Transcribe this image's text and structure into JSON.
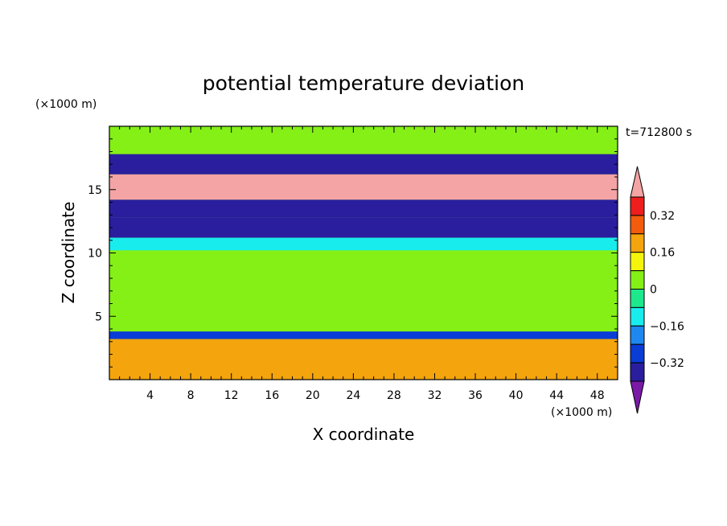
{
  "chart_data": {
    "type": "heatmap",
    "title": "potential temperature deviation",
    "xlabel": "X coordinate",
    "ylabel": "Z coordinate",
    "x_unit": "(×1000 m)",
    "y_unit": "(×1000 m)",
    "time_label": "t=712800 s",
    "xlim": [
      0,
      50
    ],
    "ylim": [
      0,
      20
    ],
    "x_ticks": [
      4,
      8,
      12,
      16,
      20,
      24,
      28,
      32,
      36,
      40,
      44,
      48
    ],
    "y_ticks": [
      5,
      10,
      15
    ],
    "colorbar": {
      "ticks": [
        0.32,
        0.16,
        0,
        -0.16,
        -0.32
      ],
      "tick_labels": [
        "0.32",
        "0.16",
        "0",
        "−0.16",
        "−0.32"
      ],
      "levels": [
        -0.4,
        -0.32,
        -0.24,
        -0.16,
        -0.08,
        0,
        0.08,
        0.16,
        0.24,
        0.32,
        0.4
      ],
      "colors": [
        "#7a1aa6",
        "#2a1e9e",
        "#0a3cd6",
        "#1e88f0",
        "#19ecec",
        "#1de88c",
        "#84f016",
        "#f4f40c",
        "#f4a40c",
        "#f25c0c",
        "#ee1e1e",
        "#f4a4a4"
      ],
      "extend": "both"
    },
    "field_bands": [
      {
        "z": [
          17.8,
          19.9
        ],
        "value": 0.05
      },
      {
        "z": [
          16.2,
          17.8
        ],
        "value": -0.34
      },
      {
        "z": [
          14.2,
          16.2
        ],
        "value": 0.42
      },
      {
        "z": [
          12.8,
          14.2
        ],
        "value": -0.34
      },
      {
        "z": [
          11.2,
          12.8
        ],
        "value": -0.36
      },
      {
        "z": [
          10.2,
          11.2
        ],
        "value": -0.1
      },
      {
        "z": [
          6.5,
          10.2
        ],
        "value": 0.04
      },
      {
        "z": [
          3.8,
          6.5
        ],
        "value": 0.07
      },
      {
        "z": [
          3.2,
          3.8
        ],
        "value": -0.26
      },
      {
        "z": [
          0,
          3.2
        ],
        "value": 0.2
      }
    ]
  }
}
